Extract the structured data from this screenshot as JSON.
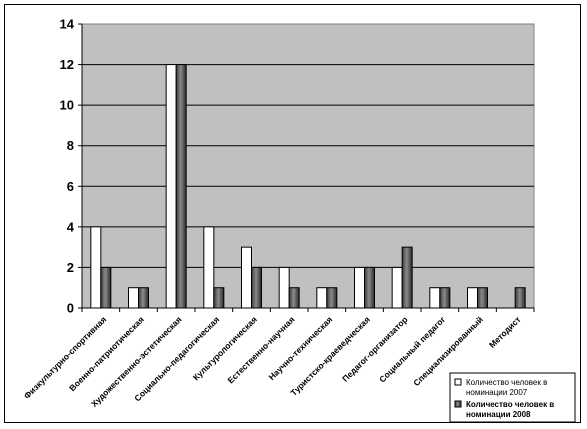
{
  "chart_data": {
    "type": "bar",
    "title": "",
    "xlabel": "",
    "ylabel": "",
    "ylim": [
      0,
      14
    ],
    "yticks": [
      0,
      2,
      4,
      6,
      8,
      10,
      12,
      14
    ],
    "grid": true,
    "legend_position": "bottom-right",
    "plot_background": "#c0c0c0",
    "categories": [
      "Физкультурно-спортивная",
      "Военно-патриотическая",
      "Художественно-эстетическая",
      "Социально-педагогическая",
      "Культурологическая",
      "Естественно-научная",
      "Научно-техническая",
      "Туристско-краеведческая",
      "Педагог-организатор",
      "Социальный педагог",
      "Специализированный",
      "Методист"
    ],
    "series": [
      {
        "name": "Количество человек в номинации 2007",
        "color": "#ffffff",
        "values": [
          4,
          1,
          12,
          4,
          3,
          2,
          1,
          2,
          2,
          1,
          1,
          0
        ]
      },
      {
        "name": "Количество человек в номинации 2008",
        "color": "#606060",
        "values": [
          2,
          1,
          12,
          1,
          2,
          1,
          1,
          2,
          3,
          1,
          1,
          1
        ]
      }
    ]
  }
}
